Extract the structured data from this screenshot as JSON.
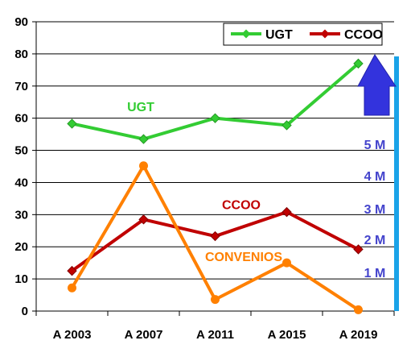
{
  "chart_data": {
    "type": "line",
    "categories": [
      "A 2003",
      "A 2007",
      "A 2011",
      "A 2015",
      "A 2019"
    ],
    "ylim": [
      0,
      90
    ],
    "yticks": [
      0,
      10,
      20,
      30,
      40,
      50,
      60,
      70,
      80,
      90
    ],
    "grid": true,
    "legend_position": "top-right",
    "series": [
      {
        "name": "UGT",
        "values": [
          58.3,
          53.5,
          60,
          57.8,
          77
        ],
        "color": "#33cc33",
        "label": "UGT",
        "show_in_legend": true
      },
      {
        "name": "CCOO",
        "values": [
          12.5,
          28.5,
          23.3,
          30.8,
          19.2
        ],
        "color": "#c00000",
        "label": "CCOO",
        "show_in_legend": true
      },
      {
        "name": "CONVENIOS",
        "values": [
          7.2,
          45.2,
          3.6,
          15,
          0.4
        ],
        "color": "#ff8000",
        "label": "CONVENIOS",
        "show_in_legend": false
      }
    ],
    "scale_labels": [
      "5 M",
      "4 M",
      "3 M",
      "2 M",
      "1 M"
    ],
    "scale_color": "#4444cc",
    "arrow_color": "#3333dd",
    "bar_color": "#1aa3e8"
  }
}
